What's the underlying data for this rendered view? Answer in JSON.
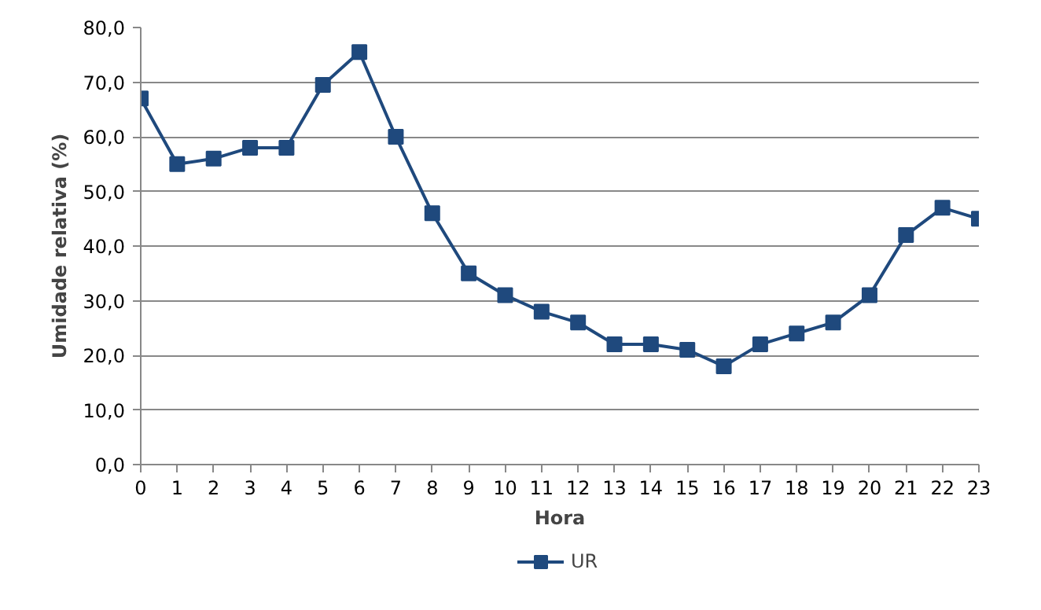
{
  "chart_data": {
    "type": "line",
    "xlabel": "Hora",
    "ylabel": "Umidade relativa (%)",
    "x": [
      0,
      1,
      2,
      3,
      4,
      5,
      6,
      7,
      8,
      9,
      10,
      11,
      12,
      13,
      14,
      15,
      16,
      17,
      18,
      19,
      20,
      21,
      22,
      23
    ],
    "series": [
      {
        "name": "UR",
        "color": "#1f497d",
        "values": [
          67,
          55,
          56,
          58,
          58,
          69.5,
          75.5,
          60,
          46,
          35,
          31,
          28,
          26,
          22,
          22,
          21,
          18,
          22,
          24,
          26,
          31,
          42,
          47,
          45
        ]
      }
    ],
    "xlim": [
      0,
      23
    ],
    "xticks": [
      0,
      1,
      2,
      3,
      4,
      5,
      6,
      7,
      8,
      9,
      10,
      11,
      12,
      13,
      14,
      15,
      16,
      17,
      18,
      19,
      20,
      21,
      22,
      23
    ],
    "ylim": [
      0,
      80
    ],
    "yticks": [
      {
        "value": 0,
        "label": "0,0"
      },
      {
        "value": 10,
        "label": "10,0"
      },
      {
        "value": 20,
        "label": "20,0"
      },
      {
        "value": 30,
        "label": "30,0"
      },
      {
        "value": 40,
        "label": "40,0"
      },
      {
        "value": 50,
        "label": "50,0"
      },
      {
        "value": 60,
        "label": "60,0"
      },
      {
        "value": 70,
        "label": "70,0"
      },
      {
        "value": 80,
        "label": "80,0"
      }
    ],
    "grid": "y",
    "legend": "bottom",
    "marker": "square",
    "line_style": "solid"
  }
}
